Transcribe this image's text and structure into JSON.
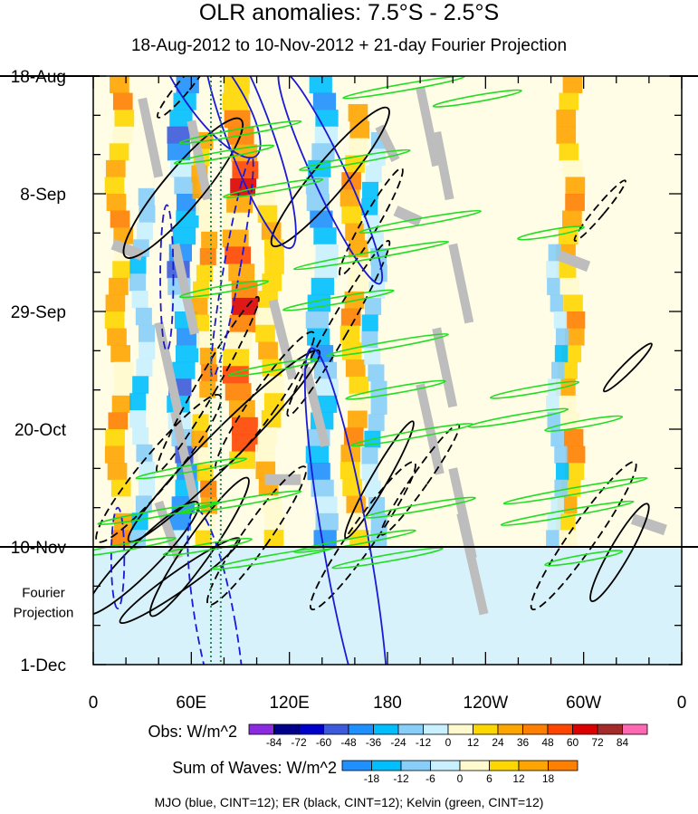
{
  "chart_data": {
    "type": "heatmap",
    "title": "OLR anomalies: 7.5°S - 2.5°S",
    "subtitle": "18-Aug-2012 to 10-Nov-2012 + 21-day Fourier Projection",
    "x_ticks": [
      "0",
      "60E",
      "120E",
      "180",
      "120W",
      "60W",
      "0"
    ],
    "x_range_deg": [
      0,
      360
    ],
    "y_ticks": [
      "18-Aug",
      "8-Sep",
      "29-Sep",
      "20-Oct",
      "10-Nov",
      "1-Dec"
    ],
    "y_range_days": [
      0,
      105
    ],
    "observation_end_label": "10-Nov",
    "projection_label": [
      "Fourier",
      "Projection"
    ],
    "obs_legend": {
      "label": "Obs: W/m^2",
      "levels": [
        "-84",
        "-72",
        "-60",
        "-48",
        "-36",
        "-24",
        "-12",
        "0",
        "12",
        "24",
        "36",
        "48",
        "60",
        "72",
        "84"
      ],
      "colors": [
        "#8a2be2",
        "#00008b",
        "#0000cd",
        "#3c5adc",
        "#1e90ff",
        "#00bfff",
        "#87cefa",
        "#c8f0ff",
        "#fffacd",
        "#ffd700",
        "#ffa500",
        "#ff7f00",
        "#ff4500",
        "#dc0000",
        "#a52a2a",
        "#ff69b4"
      ]
    },
    "waves_legend": {
      "label": "Sum of Waves: W/m^2",
      "levels": [
        "-18",
        "-12",
        "-6",
        "0",
        "6",
        "12",
        "18"
      ],
      "colors": [
        "#1e90ff",
        "#00bfff",
        "#87cefa",
        "#c8f0ff",
        "#fffacd",
        "#ffd700",
        "#ffa500",
        "#ff7f00"
      ]
    },
    "footnote": "MJO (blue, CINT=12); ER (black, CINT=12); Kelvin (green, CINT=12)",
    "bands": [
      {
        "lon": 16,
        "from": 0,
        "to": 84,
        "width": 12,
        "value": 36
      },
      {
        "lon": 30,
        "from": 20,
        "to": 84,
        "width": 10,
        "value": -24
      },
      {
        "lon": 55,
        "from": 0,
        "to": 84,
        "width": 14,
        "value": -48
      },
      {
        "lon": 68,
        "from": 10,
        "to": 84,
        "width": 10,
        "value": 36
      },
      {
        "lon": 90,
        "from": 0,
        "to": 70,
        "width": 16,
        "value": 60
      },
      {
        "lon": 108,
        "from": 20,
        "to": 84,
        "width": 12,
        "value": 24
      },
      {
        "lon": 140,
        "from": 0,
        "to": 84,
        "width": 14,
        "value": -36
      },
      {
        "lon": 160,
        "from": 5,
        "to": 84,
        "width": 12,
        "value": 36
      },
      {
        "lon": 172,
        "from": 10,
        "to": 84,
        "width": 10,
        "value": -24
      },
      {
        "lon": 292,
        "from": 0,
        "to": 84,
        "width": 12,
        "value": 36
      },
      {
        "lon": 284,
        "from": 30,
        "to": 84,
        "width": 8,
        "value": -24
      }
    ],
    "mjo_contours": [
      {
        "lon": 95,
        "day": 10,
        "rx": 14,
        "ry": 44,
        "angle": -20,
        "dashed": false
      },
      {
        "lon": 145,
        "day": 18,
        "rx": 10,
        "ry": 42,
        "angle": -25,
        "dashed": false
      },
      {
        "lon": 85,
        "day": 34,
        "rx": 5,
        "ry": 40,
        "angle": 10,
        "dashed": true
      },
      {
        "lon": 155,
        "day": 84,
        "rx": 14,
        "ry": 72,
        "angle": -10,
        "dashed": false
      },
      {
        "lon": 75,
        "day": 98,
        "rx": 12,
        "ry": 42,
        "angle": -10,
        "dashed": true
      },
      {
        "lon": 15,
        "day": 86,
        "rx": 4,
        "ry": 18,
        "angle": 0,
        "dashed": true
      },
      {
        "lon": 45,
        "day": 36,
        "rx": 4,
        "ry": 26,
        "angle": 0,
        "dashed": true
      },
      {
        "lon": 70,
        "day": 2,
        "rx": 16,
        "ry": 30,
        "angle": -35,
        "dashed": false
      }
    ],
    "er_contours": [
      {
        "lon": 55,
        "day": 20,
        "rx": 12,
        "ry": 32,
        "angle": 40,
        "dashed": false
      },
      {
        "lon": 145,
        "day": 18,
        "rx": 10,
        "ry": 32,
        "angle": 40,
        "dashed": false
      },
      {
        "lon": 170,
        "day": 26,
        "rx": 5,
        "ry": 22,
        "angle": 30,
        "dashed": true
      },
      {
        "lon": 150,
        "day": 45,
        "rx": 6,
        "ry": 36,
        "angle": 30,
        "dashed": true
      },
      {
        "lon": 70,
        "day": 55,
        "rx": 6,
        "ry": 36,
        "angle": 30,
        "dashed": true
      },
      {
        "lon": 80,
        "day": 66,
        "rx": 10,
        "ry": 48,
        "angle": 45,
        "dashed": false
      },
      {
        "lon": 105,
        "day": 58,
        "rx": 8,
        "ry": 30,
        "angle": 35,
        "dashed": true
      },
      {
        "lon": 40,
        "day": 70,
        "rx": 10,
        "ry": 34,
        "angle": 40,
        "dashed": true
      },
      {
        "lon": 175,
        "day": 72,
        "rx": 5,
        "ry": 24,
        "angle": 30,
        "dashed": false
      },
      {
        "lon": 200,
        "day": 72,
        "rx": 5,
        "ry": 24,
        "angle": 35,
        "dashed": true
      },
      {
        "lon": 30,
        "day": 86,
        "rx": 9,
        "ry": 28,
        "angle": 45,
        "dashed": false
      },
      {
        "lon": 165,
        "day": 82,
        "rx": 8,
        "ry": 32,
        "angle": 35,
        "dashed": true
      },
      {
        "lon": 100,
        "day": 82,
        "rx": 8,
        "ry": 30,
        "angle": 35,
        "dashed": true
      },
      {
        "lon": 65,
        "day": 84,
        "rx": 8,
        "ry": 30,
        "angle": 35,
        "dashed": false
      },
      {
        "lon": 300,
        "day": 82,
        "rx": 8,
        "ry": 32,
        "angle": 35,
        "dashed": true
      },
      {
        "lon": 322,
        "day": 85,
        "rx": 6,
        "ry": 20,
        "angle": 30,
        "dashed": false
      },
      {
        "lon": 310,
        "day": 24,
        "rx": 3,
        "ry": 14,
        "angle": 40,
        "dashed": true
      },
      {
        "lon": 327,
        "day": 52,
        "rx": 3,
        "ry": 12,
        "angle": 45,
        "dashed": false
      },
      {
        "lon": 53,
        "day": 90,
        "rx": 6,
        "ry": 26,
        "angle": 55,
        "dashed": false
      },
      {
        "lon": 55,
        "day": 2,
        "rx": 4,
        "ry": 14,
        "angle": 40,
        "dashed": true
      }
    ],
    "kelvin_contours": [
      {
        "lon": 190,
        "day": 2,
        "rx": 2,
        "ry": 22,
        "angle": 80
      },
      {
        "lon": 235,
        "day": 4,
        "rx": 2,
        "ry": 16,
        "angle": 80
      },
      {
        "lon": 90,
        "day": 10,
        "rx": 2,
        "ry": 22,
        "angle": 80
      },
      {
        "lon": 80,
        "day": 14,
        "rx": 2,
        "ry": 18,
        "angle": 80
      },
      {
        "lon": 160,
        "day": 15,
        "rx": 2,
        "ry": 20,
        "angle": 80
      },
      {
        "lon": 110,
        "day": 20,
        "rx": 2,
        "ry": 18,
        "angle": 80
      },
      {
        "lon": 200,
        "day": 26,
        "rx": 2,
        "ry": 22,
        "angle": 80
      },
      {
        "lon": 280,
        "day": 28,
        "rx": 2,
        "ry": 12,
        "angle": 80
      },
      {
        "lon": 170,
        "day": 32,
        "rx": 2,
        "ry": 28,
        "angle": 80
      },
      {
        "lon": 150,
        "day": 40,
        "rx": 2,
        "ry": 20,
        "angle": 80
      },
      {
        "lon": 80,
        "day": 38,
        "rx": 2,
        "ry": 16,
        "angle": 80
      },
      {
        "lon": 180,
        "day": 48,
        "rx": 2,
        "ry": 22,
        "angle": 80
      },
      {
        "lon": 110,
        "day": 52,
        "rx": 2,
        "ry": 16,
        "angle": 80
      },
      {
        "lon": 185,
        "day": 56,
        "rx": 2,
        "ry": 18,
        "angle": 80
      },
      {
        "lon": 270,
        "day": 56,
        "rx": 2,
        "ry": 16,
        "angle": 80
      },
      {
        "lon": 260,
        "day": 61,
        "rx": 2,
        "ry": 18,
        "angle": 80
      },
      {
        "lon": 300,
        "day": 62,
        "rx": 2,
        "ry": 14,
        "angle": 80
      },
      {
        "lon": 195,
        "day": 64,
        "rx": 2,
        "ry": 22,
        "angle": 80
      },
      {
        "lon": 60,
        "day": 70,
        "rx": 2,
        "ry": 20,
        "angle": 80
      },
      {
        "lon": 90,
        "day": 76,
        "rx": 2,
        "ry": 22,
        "angle": 80
      },
      {
        "lon": 200,
        "day": 77,
        "rx": 2,
        "ry": 20,
        "angle": 80
      },
      {
        "lon": 295,
        "day": 74,
        "rx": 2,
        "ry": 26,
        "angle": 80
      },
      {
        "lon": 290,
        "day": 78,
        "rx": 2,
        "ry": 24,
        "angle": 80
      },
      {
        "lon": 40,
        "day": 78,
        "rx": 2,
        "ry": 22,
        "angle": 80
      },
      {
        "lon": 160,
        "day": 83,
        "rx": 2,
        "ry": 22,
        "angle": 80
      },
      {
        "lon": 70,
        "day": 84,
        "rx": 2,
        "ry": 16,
        "angle": 80
      },
      {
        "lon": 180,
        "day": 86,
        "rx": 2,
        "ry": 20,
        "angle": 80
      },
      {
        "lon": 110,
        "day": 86,
        "rx": 2,
        "ry": 22,
        "angle": 80
      },
      {
        "lon": 20,
        "day": 84,
        "rx": 2,
        "ry": 18,
        "angle": 80
      },
      {
        "lon": 300,
        "day": 86,
        "rx": 2,
        "ry": 14,
        "angle": 80
      }
    ],
    "missing_segments": [
      {
        "lon": 30,
        "day": 4,
        "len_deg": 10,
        "len_days": 14
      },
      {
        "lon": 60,
        "day": 8,
        "len_deg": 10,
        "len_days": 14
      },
      {
        "lon": 200,
        "day": 2,
        "len_deg": 10,
        "len_days": 14
      },
      {
        "lon": 210,
        "day": 10,
        "len_deg": 8,
        "len_days": 12
      },
      {
        "lon": 175,
        "day": 9,
        "len_deg": 10,
        "len_days": 6
      },
      {
        "lon": 220,
        "day": 30,
        "len_deg": 10,
        "len_days": 14
      },
      {
        "lon": 210,
        "day": 45,
        "len_deg": 10,
        "len_days": 14
      },
      {
        "lon": 200,
        "day": 55,
        "len_deg": 12,
        "len_days": 16
      },
      {
        "lon": 220,
        "day": 70,
        "len_deg": 12,
        "len_days": 16
      },
      {
        "lon": 225,
        "day": 78,
        "len_deg": 14,
        "len_days": 18
      },
      {
        "lon": 50,
        "day": 30,
        "len_deg": 12,
        "len_days": 16
      },
      {
        "lon": 40,
        "day": 44,
        "len_deg": 12,
        "len_days": 16
      },
      {
        "lon": 50,
        "day": 60,
        "len_deg": 12,
        "len_days": 16
      },
      {
        "lon": 40,
        "day": 76,
        "len_deg": 12,
        "len_days": 10
      },
      {
        "lon": 110,
        "day": 40,
        "len_deg": 12,
        "len_days": 14
      },
      {
        "lon": 130,
        "day": 52,
        "len_deg": 12,
        "len_days": 14
      },
      {
        "lon": 330,
        "day": 79,
        "len_deg": 20,
        "len_days": 2
      },
      {
        "lon": 185,
        "day": 24,
        "len_deg": 15,
        "len_days": 2
      },
      {
        "lon": 12,
        "day": 30,
        "len_deg": 18,
        "len_days": 2
      },
      {
        "lon": 285,
        "day": 32,
        "len_deg": 18,
        "len_days": 2
      },
      {
        "lon": 105,
        "day": 72,
        "len_deg": 22,
        "len_days": 0
      }
    ],
    "reference_lines": [
      {
        "lon": 72,
        "color": "#2e8b57",
        "style": "dotted"
      },
      {
        "lon": 78,
        "color": "#2e8b57",
        "style": "dotted"
      }
    ]
  }
}
